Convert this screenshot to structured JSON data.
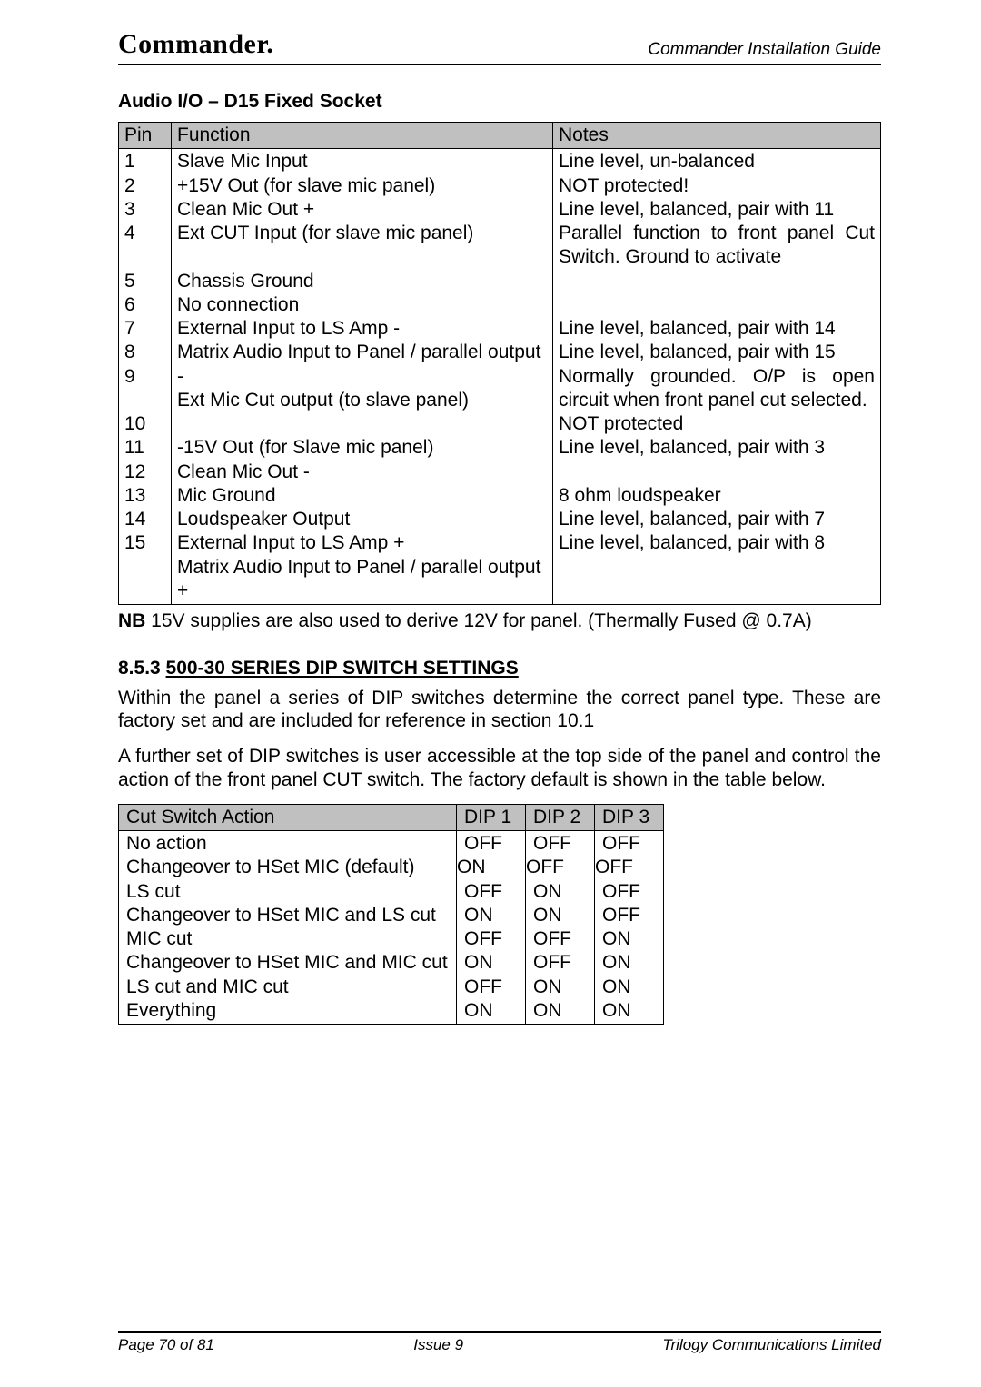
{
  "header": {
    "brand": "Commander.",
    "doc_title": "Commander Installation Guide"
  },
  "audio_io": {
    "title": "Audio I/O – D15 Fixed Socket",
    "headers": {
      "pin": "Pin",
      "function": "Function",
      "notes": "Notes"
    },
    "rows": [
      {
        "pin": "1",
        "function": "Slave Mic Input",
        "notes": "Line level, un-balanced"
      },
      {
        "pin": "2",
        "function": "+15V Out (for slave mic panel)",
        "notes": "NOT protected!"
      },
      {
        "pin": "3",
        "function": "Clean Mic Out +",
        "notes": "Line level, balanced, pair with 11"
      },
      {
        "pin": "4",
        "function": "Ext CUT Input (for slave mic panel)",
        "notes": "Parallel function to front panel Cut Switch. Ground to activate"
      },
      {
        "pin": "5",
        "function": "Chassis Ground",
        "notes": ""
      },
      {
        "pin": "6",
        "function": "No connection",
        "notes": ""
      },
      {
        "pin": "7",
        "function": "External Input to LS Amp -",
        "notes": "Line level, balanced, pair with 14"
      },
      {
        "pin": "8",
        "function": "Matrix Audio Input to Panel / parallel output -",
        "notes": "Line level, balanced, pair with 15"
      },
      {
        "pin": "9",
        "function": "Ext Mic Cut output (to slave panel)",
        "notes": "Normally grounded. O/P is open circuit when front panel cut selected."
      },
      {
        "pin": "10",
        "function": "-15V Out (for Slave mic panel)",
        "notes": "NOT protected"
      },
      {
        "pin": "11",
        "function": "Clean Mic Out -",
        "notes": "Line level, balanced, pair with 3"
      },
      {
        "pin": "12",
        "function": "Mic Ground",
        "notes": ""
      },
      {
        "pin": "13",
        "function": "Loudspeaker Output",
        "notes": "8 ohm loudspeaker"
      },
      {
        "pin": "14",
        "function": "External Input to LS Amp +",
        "notes": "Line level, balanced, pair with 7"
      },
      {
        "pin": "15",
        "function": "Matrix Audio Input to Panel / parallel output +",
        "notes": "Line level, balanced, pair with 8"
      }
    ],
    "nb_label": "NB",
    "nb_text": " 15V supplies are also used to derive 12V for panel.  (Thermally Fused @ 0.7A)"
  },
  "dip_section": {
    "number": "8.5.3  ",
    "title": "500-30 SERIES DIP SWITCH SETTINGS",
    "para1": "Within the panel a series of DIP switches determine the correct panel type. These are factory set and are included for reference in section 10.1",
    "para2": "A further set of DIP switches is user accessible at the top side of the panel and control the action of the front panel CUT switch. The factory default is shown in the table below.",
    "headers": {
      "action": "Cut Switch Action",
      "d1": "DIP 1",
      "d2": "DIP 2",
      "d3": "DIP 3"
    },
    "rows": [
      {
        "action": "No action",
        "d1": "OFF",
        "d2": "OFF",
        "d3": "OFF",
        "shift": false
      },
      {
        "action": "Changeover to HSet MIC (default)",
        "d1": "ON",
        "d2": "OFF",
        "d3": "OFF",
        "shift": true
      },
      {
        "action": "LS cut",
        "d1": "OFF",
        "d2": "ON",
        "d3": "OFF",
        "shift": false
      },
      {
        "action": "Changeover to HSet MIC and LS cut",
        "d1": "ON",
        "d2": "ON",
        "d3": "OFF",
        "shift": false
      },
      {
        "action": "MIC cut",
        "d1": "OFF",
        "d2": "OFF",
        "d3": "ON",
        "shift": false
      },
      {
        "action": "Changeover to HSet MIC and MIC cut",
        "d1": "ON",
        "d2": "OFF",
        "d3": "ON",
        "shift": false
      },
      {
        "action": "LS cut and MIC cut",
        "d1": "OFF",
        "d2": "ON",
        "d3": "ON",
        "shift": false
      },
      {
        "action": "Everything",
        "d1": "ON",
        "d2": "ON",
        "d3": "ON",
        "shift": false
      }
    ]
  },
  "footer": {
    "left": "Page 70 of 81",
    "center": "Issue 9",
    "right": "Trilogy Communications Limited"
  },
  "style": {
    "table_header_bg": "#c0c0c0"
  }
}
